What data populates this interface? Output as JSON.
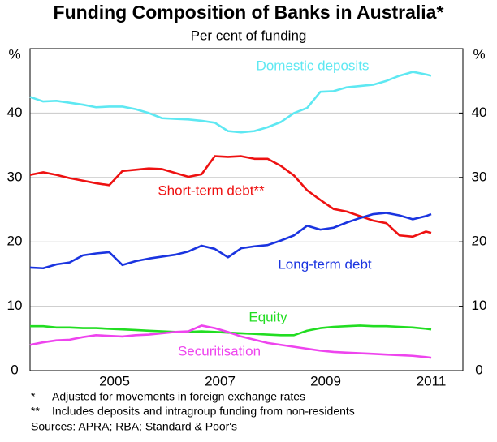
{
  "chart_data": {
    "type": "line",
    "title": "Funding Composition of Banks in Australia*",
    "subtitle": "Per cent of funding",
    "y_unit": "%",
    "y2_unit": "%",
    "x": [
      2003.9,
      2004.15,
      2004.4,
      2004.65,
      2004.9,
      2005.15,
      2005.4,
      2005.65,
      2005.9,
      2006.15,
      2006.4,
      2006.65,
      2006.9,
      2007.15,
      2007.4,
      2007.65,
      2007.9,
      2008.15,
      2008.4,
      2008.65,
      2008.9,
      2009.15,
      2009.4,
      2009.65,
      2009.9,
      2010.15,
      2010.4,
      2010.65,
      2010.9,
      2011.15,
      2011.4,
      2011.5
    ],
    "series": [
      {
        "name": "Domestic deposits",
        "color": "#5ee8f2",
        "values": [
          42.5,
          41.8,
          41.9,
          41.6,
          41.3,
          40.9,
          41,
          41,
          40.6,
          40,
          39.2,
          39.1,
          39,
          38.8,
          38.5,
          37.2,
          37,
          37.2,
          37.8,
          38.6,
          40,
          40.8,
          43.3,
          43.4,
          44,
          44.2,
          44.4,
          45,
          45.8,
          46.4,
          46,
          45.8
        ]
      },
      {
        "name": "Short-term debt**",
        "color": "#ee1111",
        "values": [
          30.4,
          30.8,
          30.4,
          29.9,
          29.5,
          29.1,
          28.8,
          31,
          31.2,
          31.4,
          31.3,
          30.7,
          30.1,
          30.5,
          33.3,
          33.2,
          33.3,
          32.9,
          32.9,
          31.8,
          30.3,
          28,
          26.5,
          25.1,
          24.7,
          24,
          23.3,
          22.9,
          21,
          20.8,
          21.6,
          21.4
        ]
      },
      {
        "name": "Long-term debt",
        "color": "#1a34e0",
        "values": [
          16,
          15.9,
          16.5,
          16.8,
          17.9,
          18.2,
          18.4,
          16.4,
          17,
          17.4,
          17.7,
          18,
          18.5,
          19.4,
          18.9,
          17.6,
          19,
          19.3,
          19.5,
          20.2,
          21,
          22.5,
          21.9,
          22.2,
          23,
          23.7,
          24.3,
          24.5,
          24.1,
          23.5,
          24,
          24.3
        ]
      },
      {
        "name": "Equity",
        "color": "#22dd22",
        "values": [
          6.9,
          6.9,
          6.7,
          6.7,
          6.6,
          6.6,
          6.5,
          6.4,
          6.3,
          6.2,
          6.1,
          6,
          6,
          6.1,
          6,
          5.9,
          5.8,
          5.7,
          5.6,
          5.5,
          5.5,
          6.2,
          6.6,
          6.8,
          6.9,
          7,
          6.9,
          6.9,
          6.8,
          6.7,
          6.5,
          6.4
        ]
      },
      {
        "name": "Securitisation",
        "color": "#ee44ee",
        "values": [
          4,
          4.4,
          4.7,
          4.8,
          5.2,
          5.5,
          5.4,
          5.3,
          5.5,
          5.6,
          5.8,
          6,
          6.1,
          7,
          6.6,
          6,
          5.3,
          4.8,
          4.3,
          4,
          3.7,
          3.4,
          3.1,
          2.9,
          2.8,
          2.7,
          2.6,
          2.5,
          2.4,
          2.3,
          2.1,
          2.0
        ]
      }
    ],
    "xlim": [
      2003.9,
      2012.1
    ],
    "xticks": [
      {
        "value": 2005.5,
        "label": "2005"
      },
      {
        "value": 2007.5,
        "label": "2007"
      },
      {
        "value": 2009.5,
        "label": "2009"
      },
      {
        "value": 2011.5,
        "label": "2011"
      }
    ],
    "ylim": [
      0,
      50
    ],
    "yticks": [
      0,
      10,
      20,
      30,
      40
    ],
    "y2lim": [
      0,
      50
    ],
    "y2ticks": [
      0,
      10,
      20,
      30,
      40
    ],
    "grid": true,
    "notes": [
      {
        "marker": "*",
        "text": "Adjusted for movements in foreign exchange rates"
      },
      {
        "marker": "**",
        "text": "Includes deposits and intragroup funding from non-residents"
      }
    ],
    "source": "Sources: APRA; RBA; Standard & Poor's"
  }
}
